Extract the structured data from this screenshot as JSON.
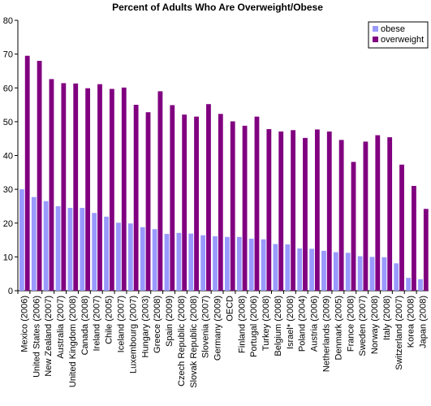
{
  "chart_data": {
    "type": "bar",
    "title": "Percent of Adults Who Are Overweight/Obese",
    "xlabel": "",
    "ylabel": "",
    "ylim": [
      0,
      80
    ],
    "yticks": [
      "0",
      "10",
      "20",
      "30",
      "40",
      "50",
      "60",
      "70",
      "80"
    ],
    "grid": false,
    "legend_position": "top-right",
    "categories": [
      "Mexico (2006)",
      "United States (2006)",
      "New Zealand (2007)",
      "Australia (2007)",
      "United Kingdom (2008)",
      "Canada (2008)",
      "Ireland (2007)",
      "Chile (2005)",
      "Iceland (2007)",
      "Luxembourg (2007)",
      "Hungary (2003)",
      "Greece (2008)",
      "Spain (2009)",
      "Czech Republic (2008)",
      "Slovak Republic (2008)",
      "Slovenia (2007)",
      "Germany (2009)",
      "OECD",
      "Finland (2008)",
      "Portugal (2006)",
      "Turkey (2008)",
      "Belgium (2008)",
      "Israel* (2008)",
      "Poland (2004)",
      "Austria (2006)",
      "Netherlands (2009)",
      "Denmark (2005)",
      "France (2008)",
      "Sweden (2007)",
      "Norway (2008)",
      "Italy (2008)",
      "Switzerland (2007)",
      "Korea (2008)",
      "Japan (2008)"
    ],
    "series": [
      {
        "name": "obese",
        "color": "#9999ff",
        "values": [
          30.0,
          27.7,
          26.5,
          25.0,
          24.5,
          24.5,
          23.0,
          21.9,
          20.1,
          19.9,
          18.8,
          18.2,
          16.8,
          17.1,
          16.9,
          16.4,
          16.1,
          15.9,
          15.9,
          15.4,
          15.2,
          13.8,
          13.7,
          12.5,
          12.4,
          11.8,
          11.4,
          11.2,
          10.2,
          10.0,
          9.9,
          8.1,
          3.8,
          3.4
        ]
      },
      {
        "name": "overweight",
        "color": "#800080",
        "values": [
          69.5,
          68.0,
          62.6,
          61.4,
          61.3,
          59.9,
          61.1,
          59.7,
          60.1,
          55.0,
          52.8,
          59.0,
          54.9,
          52.1,
          51.5,
          55.2,
          52.3,
          50.1,
          48.8,
          51.5,
          47.8,
          47.1,
          47.5,
          45.2,
          47.7,
          47.1,
          44.6,
          38.1,
          44.1,
          46.0,
          45.4,
          37.3,
          31.0,
          24.2
        ]
      }
    ]
  }
}
